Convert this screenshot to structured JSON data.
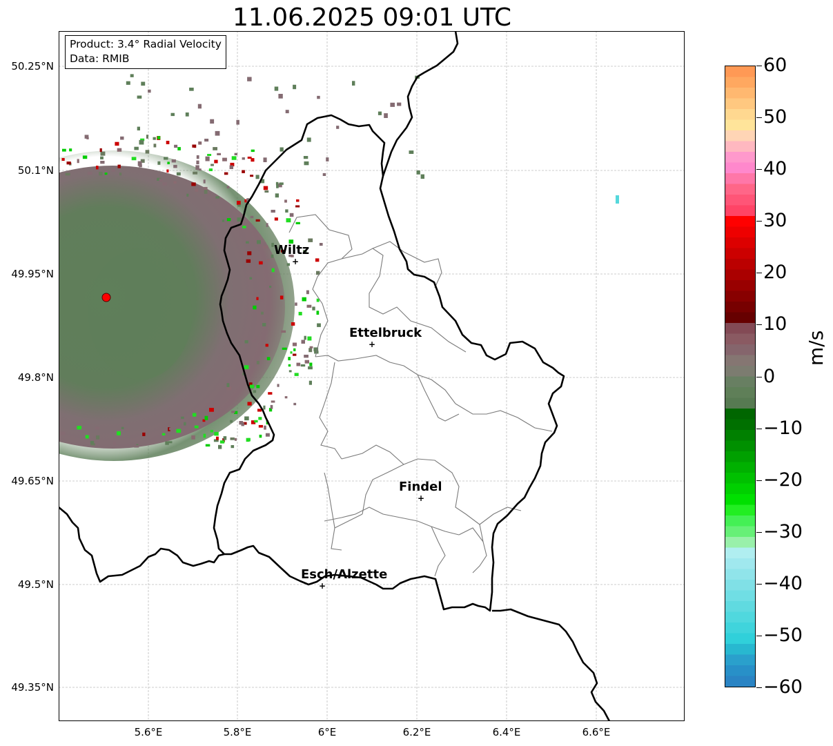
{
  "title": "11.06.2025 09:01 UTC",
  "info": {
    "product": "Product: 3.4° Radial Velocity",
    "data_source": "Data: RMIB"
  },
  "lat_labels": [
    "50.25°N",
    "50.1°N",
    "49.95°N",
    "49.8°N",
    "49.65°N",
    "49.5°N",
    "49.35°N"
  ],
  "lon_labels": [
    "5.6°E",
    "5.8°E",
    "6°E",
    "6.2°E",
    "6.4°E",
    "6.6°E"
  ],
  "cities": [
    {
      "name": "Wiltz"
    },
    {
      "name": "Ettelbruck"
    },
    {
      "name": "Findel"
    },
    {
      "name": "Esch/Alzette"
    }
  ],
  "colorbar": {
    "unit": "m/s",
    "tick_labels": [
      "60",
      "50",
      "40",
      "30",
      "20",
      "10",
      "0",
      "−10",
      "−20",
      "−30",
      "−40",
      "−50",
      "−60"
    ],
    "range": [
      -60,
      60
    ]
  },
  "colors": {
    "border": "#000000",
    "district_lines": "#7a7a7a",
    "grid": "#bdbdbd",
    "radar_site": "#ff0000",
    "neg_velocity": "#00cc00",
    "near_zero_neg": "#5f7f5a",
    "near_zero_pos": "#846b72",
    "pos_velocity": "#cc0000"
  }
}
